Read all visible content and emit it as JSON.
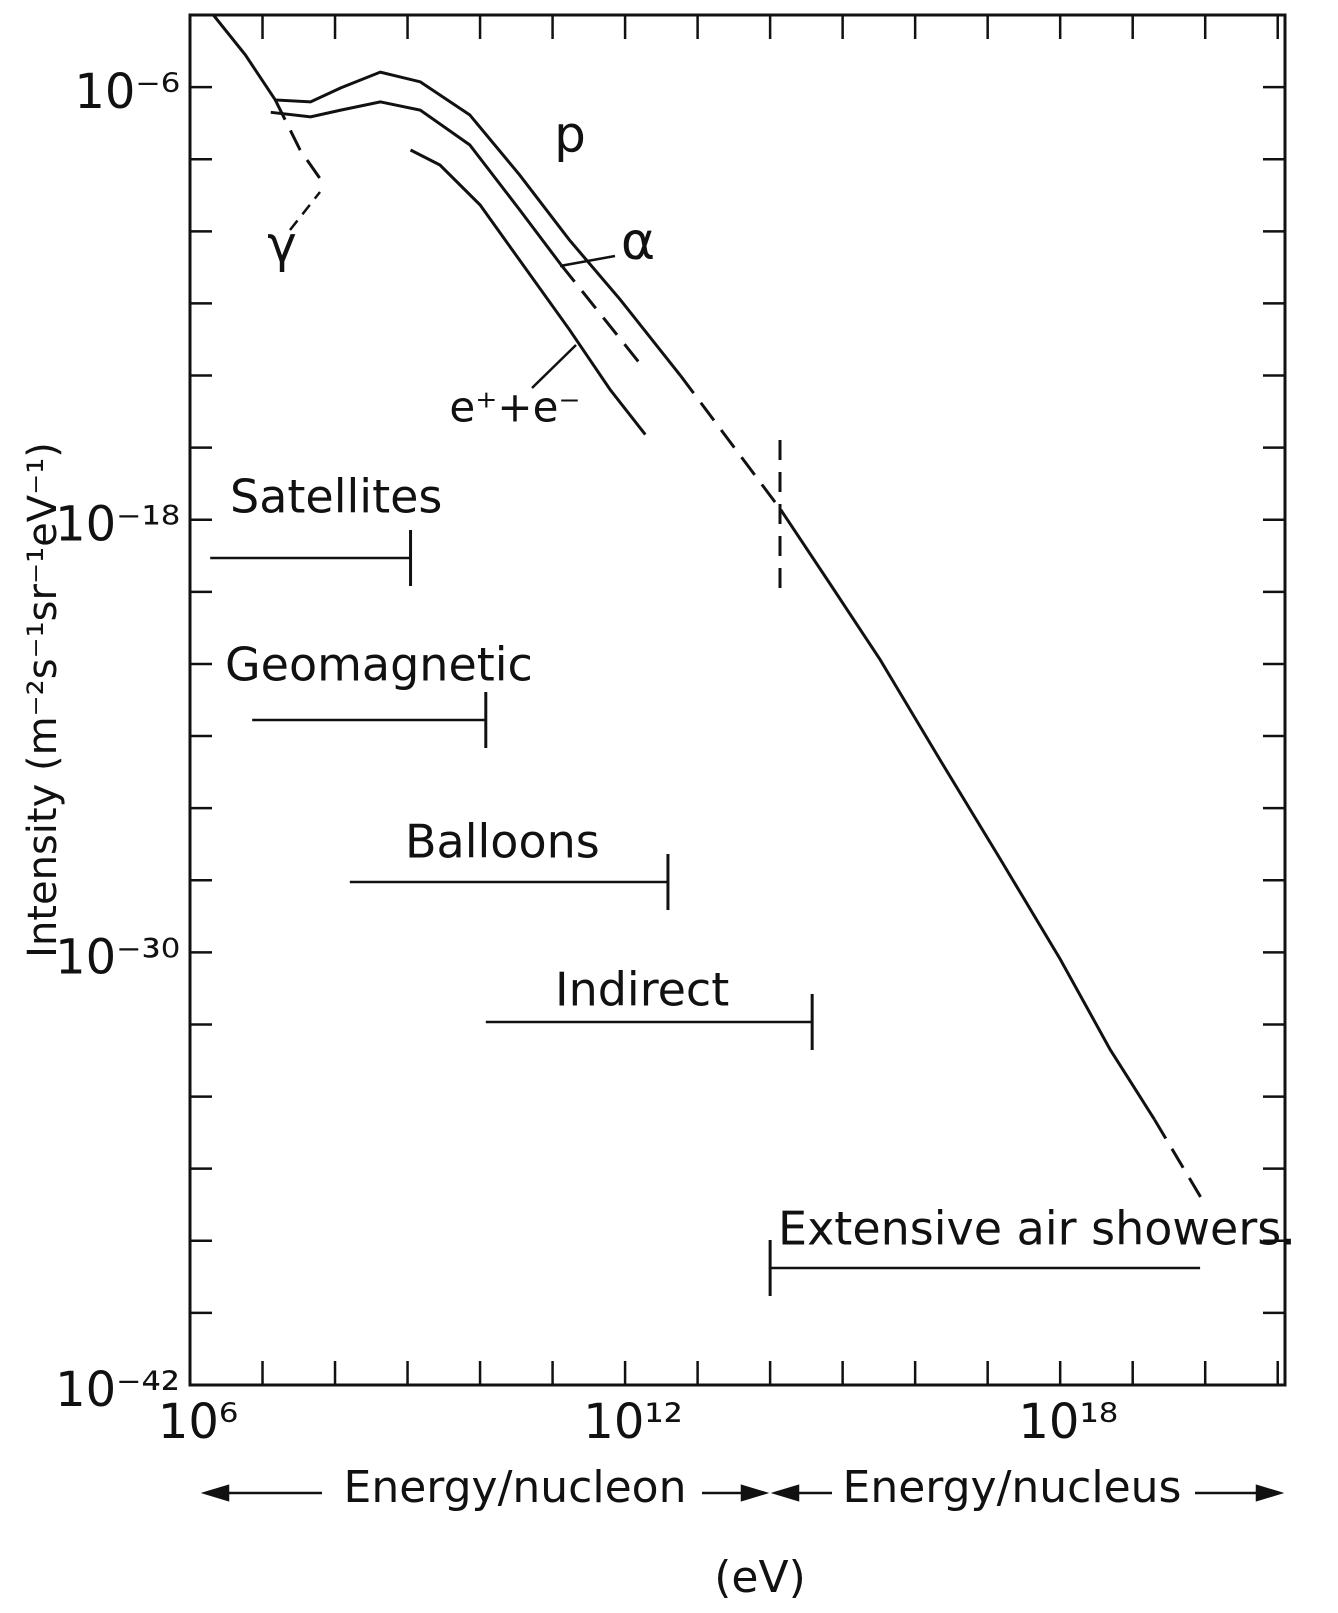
{
  "chart_data": {
    "type": "line",
    "xscale": "log",
    "yscale": "log",
    "xlim": [
      1000000.0,
      1.26e+21
    ],
    "ylim": [
      1e-42,
      0.0001
    ],
    "xticks": [
      {
        "value": 1000000.0,
        "label": "10⁶"
      },
      {
        "value": 1000000000000.0,
        "label": "10¹²"
      },
      {
        "value": 1e+18,
        "label": "10¹⁸"
      }
    ],
    "xminorticks": [
      10000000.0,
      100000000.0,
      1000000000.0,
      10000000000.0,
      100000000000.0,
      10000000000000.0,
      100000000000000.0,
      1000000000000000.0,
      1e+16,
      1e+17,
      1e+19,
      1e+20,
      1e+21
    ],
    "yticks": [
      {
        "value": 1e-06,
        "label": "10⁻⁶"
      },
      {
        "value": 1e-18,
        "label": "10⁻¹⁸"
      },
      {
        "value": 1e-30,
        "label": "10⁻³⁰"
      },
      {
        "value": 1e-42,
        "label": "10⁻⁴²"
      }
    ],
    "yminorticks": [
      1e-08,
      1e-10,
      1e-12,
      1e-14,
      1e-16,
      1e-20,
      1e-22,
      1e-24,
      1e-26,
      1e-28,
      1e-32,
      1e-34,
      1e-36,
      1e-38,
      1e-40
    ],
    "grid": false,
    "ylabel": "Intensity (m⁻²s⁻¹sr⁻¹eV⁻¹)",
    "xlabel": "(eV)",
    "xlabel_left": "Energy/nucleon",
    "xlabel_right": "Energy/nucleus",
    "series": [
      {
        "name": "p",
        "color": "#111111",
        "segments": [
          {
            "dashed": false,
            "x": [
              2100000.0,
              5800000.0,
              15000000.0,
              46000000.0,
              120000000.0,
              420000000.0,
              1500000000.0,
              7200000000.0,
              35000000000.0,
              170000000000.0,
              850000000000.0,
              5800000000000.0
            ],
            "values": [
              0.0001,
              7.8e-06,
              4.4e-07,
              3.9e-07,
              9.5e-07,
              2.6e-06,
              1.4e-06,
              1.7e-07,
              3.7e-09,
              5.8e-11,
              1.3e-12,
              1e-14
            ]
          },
          {
            "dashed": true,
            "x": [
              5800000000000.0,
              140000000000000.0
            ],
            "values": [
              1e-14,
              1.9e-18
            ]
          },
          {
            "dashed": false,
            "x": [
              140000000000000.0,
              680000000000000.0,
              3300000000000000.0,
              2.2e+16,
              1.5e+17,
              1e+18,
              4.9e+18,
              2e+19
            ],
            "values": [
              1.9e-18,
              1.6e-20,
              1.3e-22,
              2.2e-25,
              3.8e-28,
              6.5e-31,
              2e-33,
              2.3e-35
            ]
          },
          {
            "dashed": true,
            "x": [
              2e+19,
              1e+20
            ],
            "values": [
              2.3e-35,
              1e-37
            ]
          }
        ]
      },
      {
        "name": "α",
        "color": "#111111",
        "segments": [
          {
            "dashed": false,
            "x": [
              13000000.0,
              46000000.0,
              120000000.0,
              420000000.0,
              1500000000.0,
              7200000000.0,
              35000000000.0,
              130000000000.0
            ],
            "values": [
              2e-07,
              1.5e-07,
              2.3e-07,
              3.9e-07,
              2.3e-07,
              2.5e-08,
              4e-10,
              1.2e-11
            ]
          },
          {
            "dashed": true,
            "x": [
              130000000000.0,
              1900000000000.0
            ],
            "values": [
              1.2e-11,
              1.4e-14
            ]
          }
        ]
      },
      {
        "name": "e⁺+e⁻",
        "color": "#111111",
        "segments": [
          {
            "dashed": false,
            "x": [
              1100000000.0,
              2800000000.0,
              10000000000.0,
              35000000000.0,
              170000000000.0,
              620000000000.0,
              1900000000000.0
            ],
            "values": [
              1.8e-08,
              6.9e-09,
              5.4e-10,
              1.6e-11,
              1.9e-13,
              4.1e-15,
              2.3e-16
            ]
          }
        ]
      },
      {
        "name": "γ",
        "color": "#111111",
        "segments": [
          {
            "dashed": true,
            "x": [
              15000000.0,
              33000000.0,
              72000000.0
            ],
            "values": [
              4.4e-07,
              1.8e-08,
              1.9e-09
            ]
          }
        ]
      }
    ],
    "ranges": [
      {
        "label": "Satellites",
        "x": [
          1900000.0,
          1100000000.0
        ]
      },
      {
        "label": "Geomagnetic",
        "x": [
          7200000.0,
          12000000000.0
        ]
      },
      {
        "label": "Balloons",
        "x": [
          160000000.0,
          3900000000000.0
        ]
      },
      {
        "label": "Indirect",
        "x": [
          12000000000.0,
          380000000000000.0
        ]
      },
      {
        "label": "Extensive air showers.",
        "x": [
          100000000000000.0,
          8.5e+19
        ]
      }
    ]
  }
}
